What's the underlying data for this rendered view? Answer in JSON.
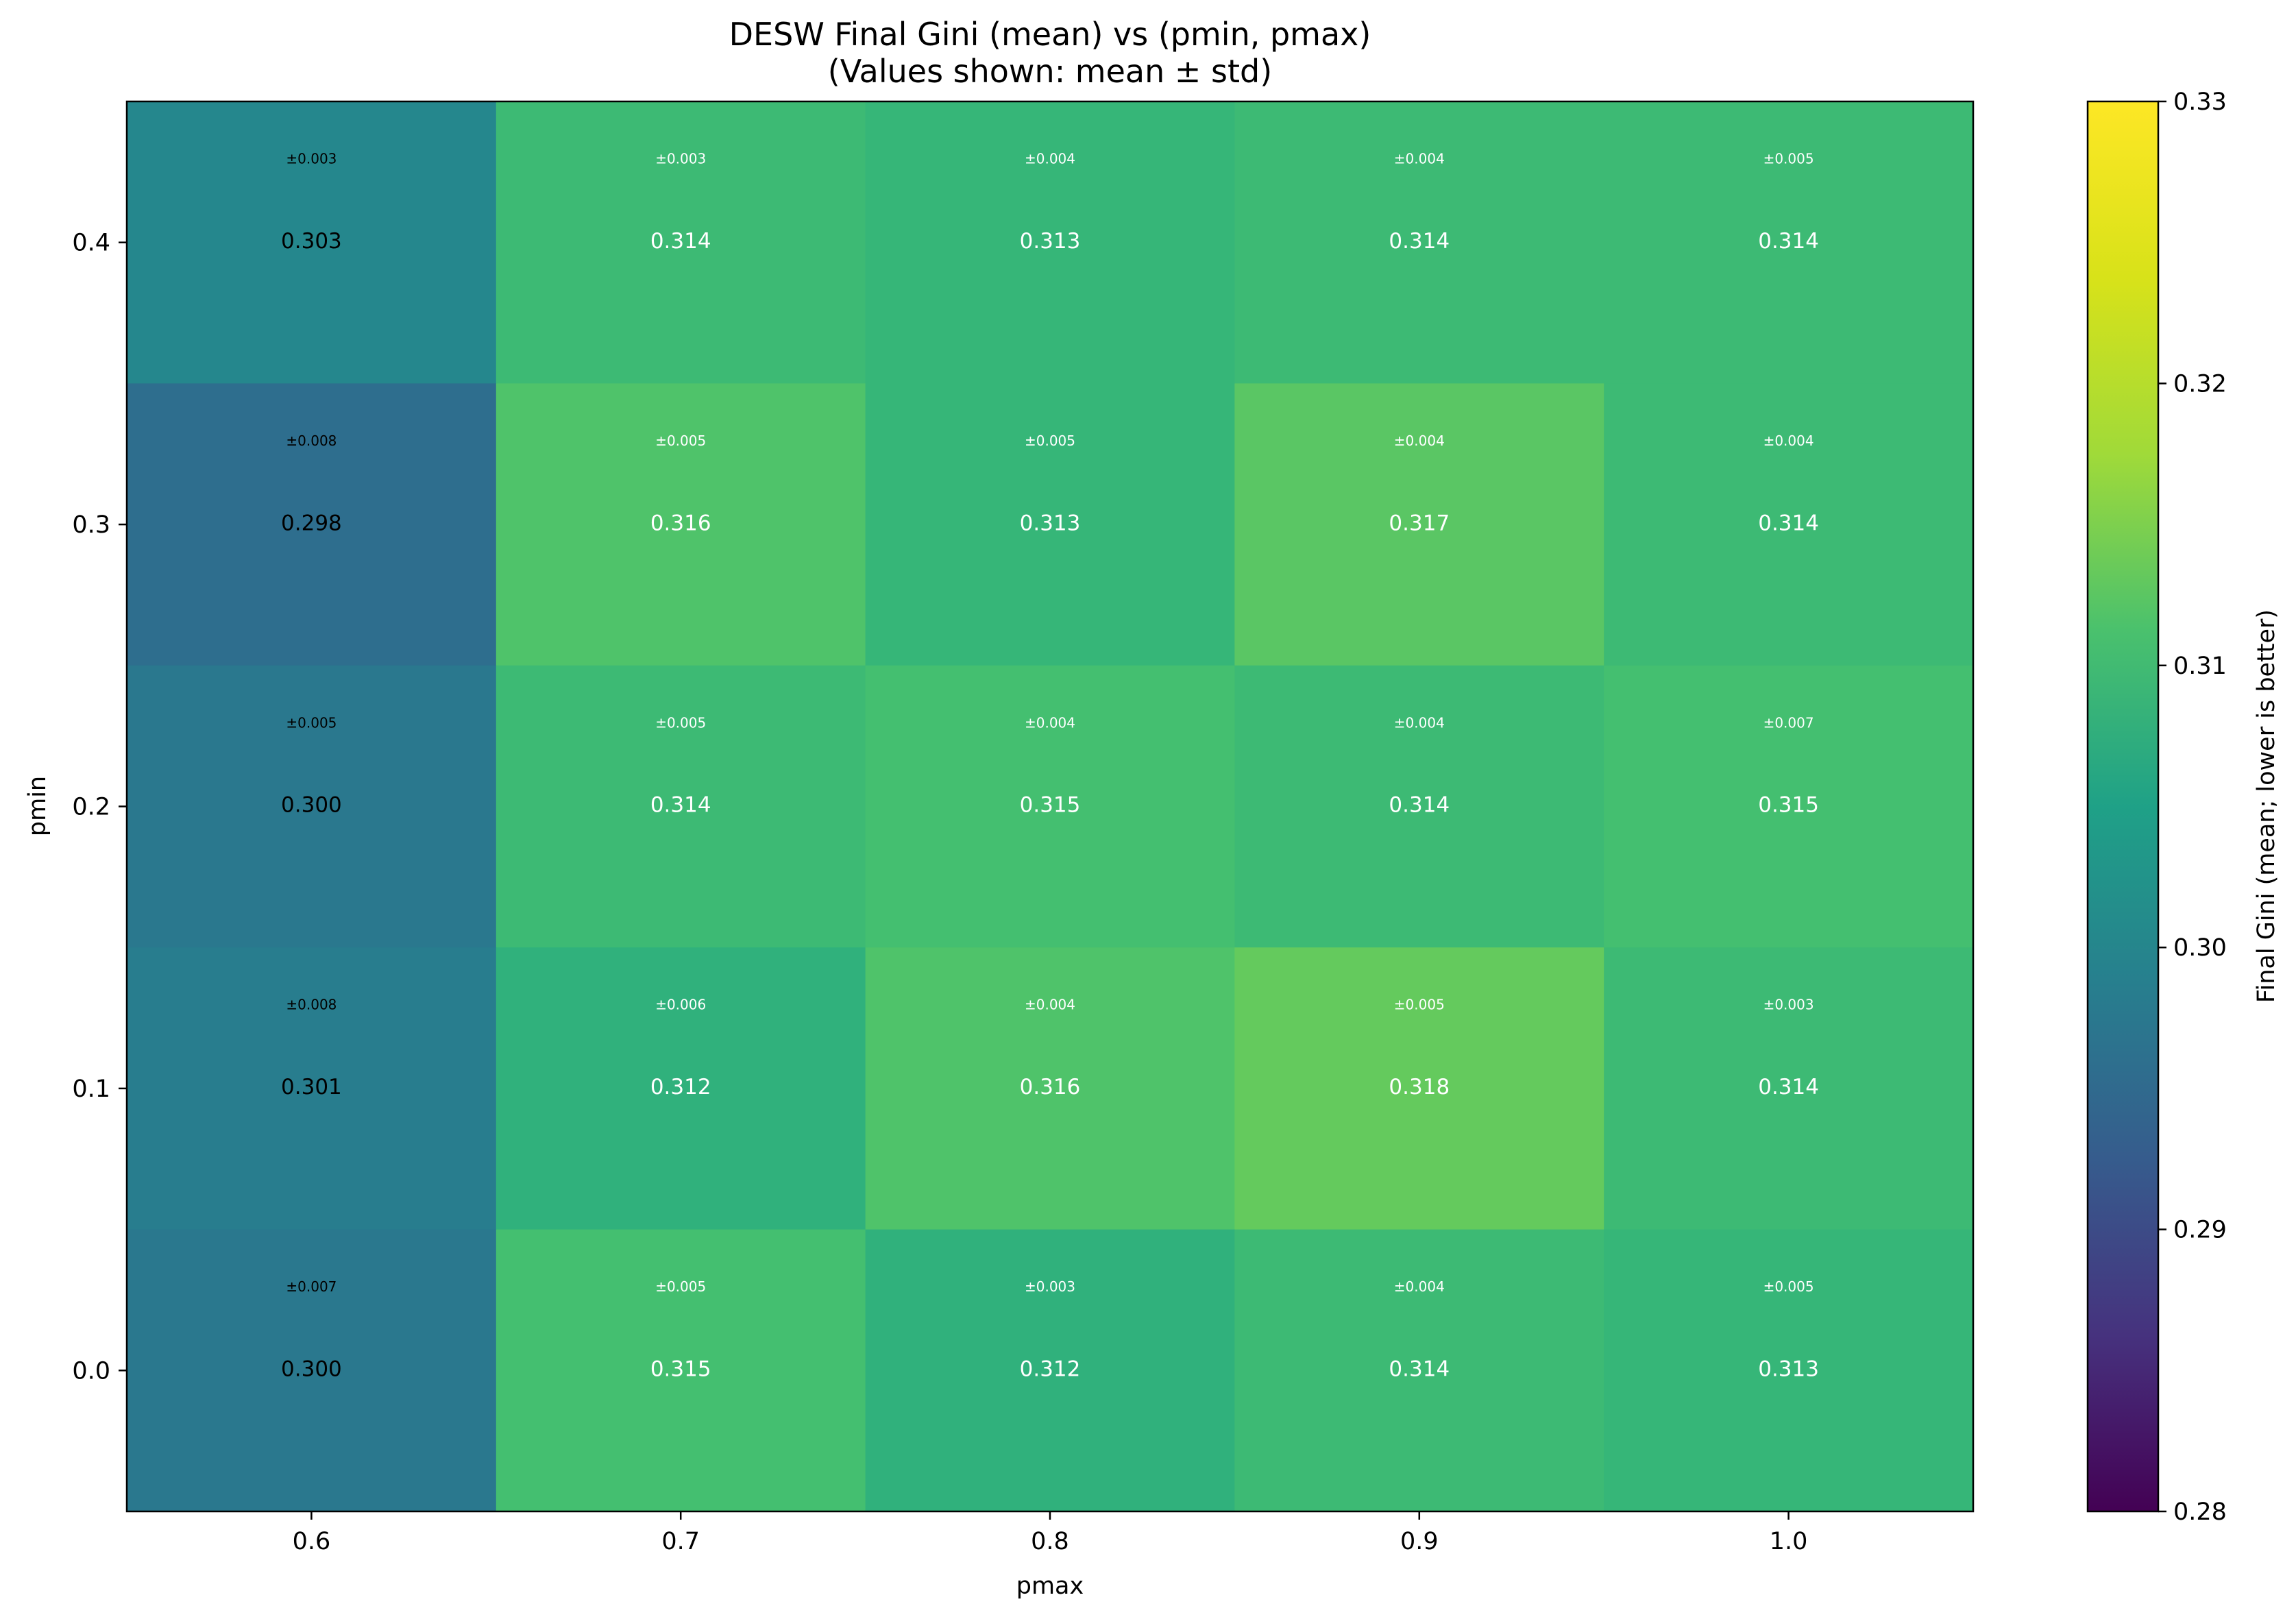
{
  "chart_data": {
    "type": "heatmap",
    "title": "DESW Final Gini (mean) vs (pmin, pmax)",
    "subtitle": "(Values shown: mean ± std)",
    "xlabel": "pmax",
    "ylabel": "pmin",
    "x": [
      "0.6",
      "0.7",
      "0.8",
      "0.9",
      "1.0"
    ],
    "y": [
      "0.4",
      "0.3",
      "0.2",
      "0.1",
      "0.0"
    ],
    "mean": [
      [
        0.303,
        0.314,
        0.313,
        0.314,
        0.314
      ],
      [
        0.298,
        0.316,
        0.313,
        0.317,
        0.314
      ],
      [
        0.3,
        0.314,
        0.315,
        0.314,
        0.315
      ],
      [
        0.301,
        0.312,
        0.316,
        0.318,
        0.314
      ],
      [
        0.3,
        0.315,
        0.312,
        0.314,
        0.313
      ]
    ],
    "mean_labels": [
      [
        "0.303",
        "0.314",
        "0.313",
        "0.314",
        "0.314"
      ],
      [
        "0.298",
        "0.316",
        "0.313",
        "0.317",
        "0.314"
      ],
      [
        "0.300",
        "0.314",
        "0.315",
        "0.314",
        "0.315"
      ],
      [
        "0.301",
        "0.312",
        "0.316",
        "0.318",
        "0.314"
      ],
      [
        "0.300",
        "0.315",
        "0.312",
        "0.314",
        "0.313"
      ]
    ],
    "std_labels": [
      [
        "±0.003",
        "±0.003",
        "±0.004",
        "±0.004",
        "±0.005"
      ],
      [
        "±0.008",
        "±0.005",
        "±0.005",
        "±0.004",
        "±0.004"
      ],
      [
        "±0.005",
        "±0.005",
        "±0.004",
        "±0.004",
        "±0.007"
      ],
      [
        "±0.008",
        "±0.006",
        "±0.004",
        "±0.005",
        "±0.003"
      ],
      [
        "±0.007",
        "±0.005",
        "±0.003",
        "±0.004",
        "±0.005"
      ]
    ],
    "colormap": "viridis",
    "colorbar": {
      "label": "Final Gini (mean; lower is better)",
      "range": [
        0.28,
        0.33
      ],
      "ticks": [
        "0.28",
        "0.29",
        "0.30",
        "0.31",
        "0.32",
        "0.33"
      ]
    },
    "grid": false
  },
  "colors": {
    "text_dark": "#000000",
    "text_light": "#ffffff"
  }
}
